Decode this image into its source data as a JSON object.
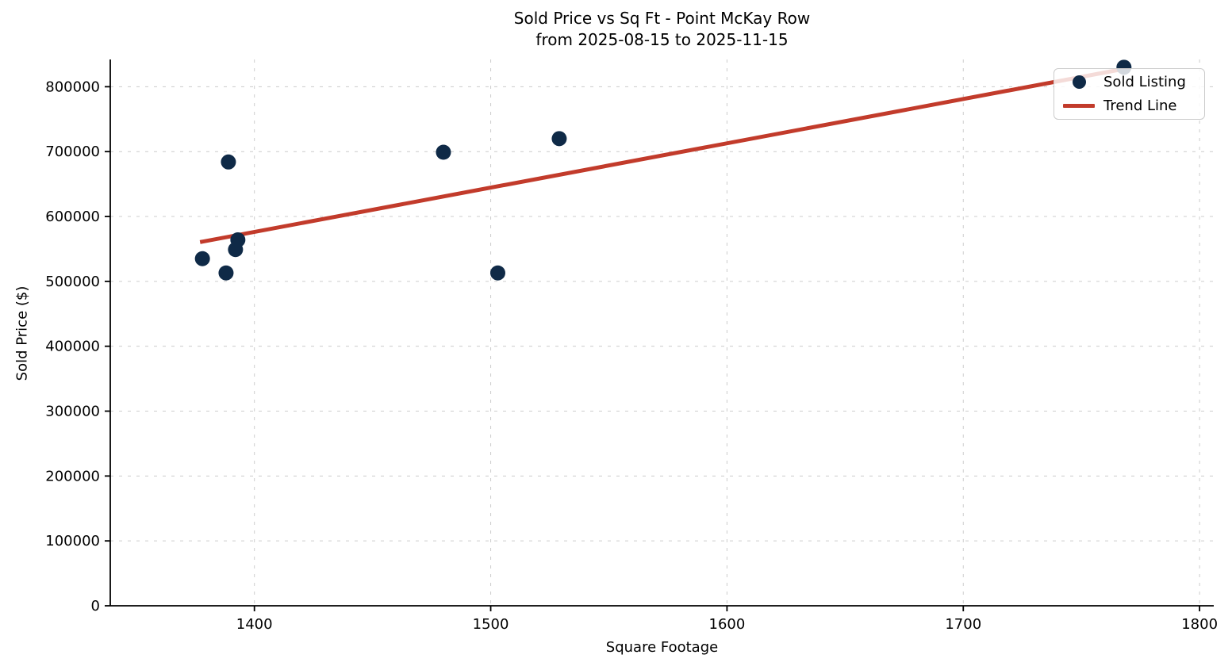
{
  "chart_data": {
    "type": "scatter",
    "title": "Sold Price vs Sq Ft - Point McKay Row",
    "subtitle": "from 2025-08-15 to 2025-11-15",
    "xlabel": "Square Footage",
    "ylabel": "Sold Price ($)",
    "xlim": [
      1339,
      1806
    ],
    "ylim": [
      0,
      842000
    ],
    "x_ticks": [
      1400,
      1500,
      1600,
      1700,
      1800
    ],
    "y_ticks": [
      0,
      100000,
      200000,
      300000,
      400000,
      500000,
      600000,
      700000,
      800000
    ],
    "grid": true,
    "grid_color": "#cccccc",
    "axis_color": "#000000",
    "legend_position": "upper right",
    "series": [
      {
        "name": "Sold Listing",
        "kind": "scatter",
        "color": "#0f2a47",
        "marker_radius": 9.5,
        "points": [
          [
            1378,
            535000
          ],
          [
            1388,
            513000
          ],
          [
            1389,
            684000
          ],
          [
            1392,
            549000
          ],
          [
            1393,
            564000
          ],
          [
            1480,
            699000
          ],
          [
            1503,
            513000
          ],
          [
            1529,
            720000
          ],
          [
            1768,
            830000
          ]
        ]
      },
      {
        "name": "Trend Line",
        "kind": "line",
        "color": "#c23b2b",
        "line_width": 5,
        "points": [
          [
            1377,
            560500
          ],
          [
            1768,
            827500
          ]
        ]
      }
    ]
  },
  "legend": {
    "items": [
      {
        "label": "Sold Listing",
        "marker": "dot-icon"
      },
      {
        "label": "Trend Line",
        "marker": "line-icon"
      }
    ]
  }
}
